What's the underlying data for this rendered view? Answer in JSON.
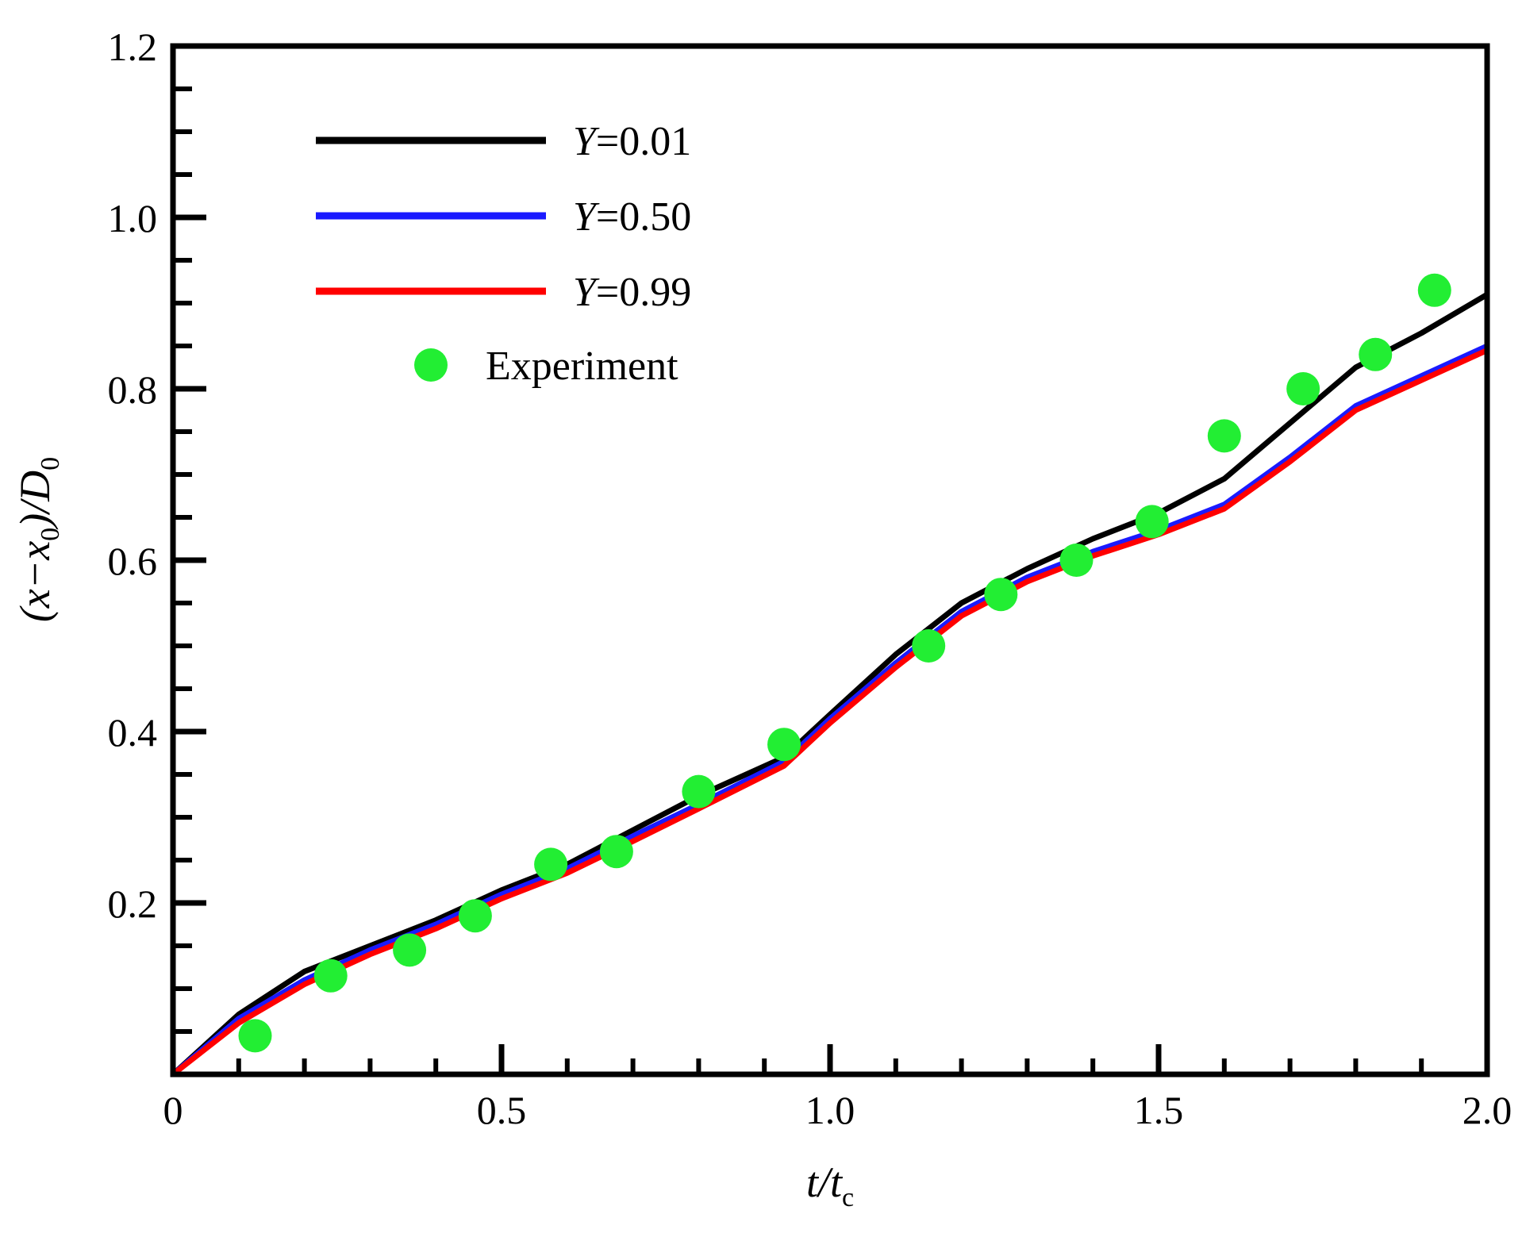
{
  "chart_data": {
    "type": "line",
    "xlabel": {
      "main": "t/t",
      "sub": "c"
    },
    "ylabel": {
      "pre": "(x−x",
      "sub1": "0",
      "mid": ")/D",
      "sub2": "0"
    },
    "xlim": [
      0,
      2.0
    ],
    "ylim": [
      0,
      1.2
    ],
    "x_ticks": [
      0,
      0.5,
      1.0,
      1.5,
      2.0
    ],
    "x_tick_labels": [
      "0",
      "0.5",
      "1.0",
      "1.5",
      "2.0"
    ],
    "y_ticks": [
      0.2,
      0.4,
      0.6,
      0.8,
      1.0,
      1.2
    ],
    "y_tick_labels": [
      "0.2",
      "0.4",
      "0.6",
      "0.8",
      "1.0",
      "1.2"
    ],
    "legend_placement": "top-left",
    "grid": false,
    "series": [
      {
        "name": "Y=0.01",
        "name_var": "Y",
        "name_val": "=0.01",
        "kind": "line",
        "color": "#000000",
        "x": [
          0.0,
          0.1,
          0.2,
          0.3,
          0.4,
          0.5,
          0.6,
          0.7,
          0.8,
          0.93,
          1.0,
          1.1,
          1.2,
          1.3,
          1.4,
          1.5,
          1.6,
          1.7,
          1.8,
          1.9,
          2.0
        ],
        "y": [
          0.0,
          0.07,
          0.12,
          0.15,
          0.18,
          0.215,
          0.245,
          0.285,
          0.325,
          0.37,
          0.42,
          0.49,
          0.55,
          0.59,
          0.625,
          0.655,
          0.695,
          0.76,
          0.825,
          0.865,
          0.91
        ]
      },
      {
        "name": "Y=0.50",
        "name_var": "Y",
        "name_val": "=0.50",
        "kind": "line",
        "color": "#1a1aff",
        "x": [
          0.0,
          0.1,
          0.2,
          0.3,
          0.4,
          0.5,
          0.6,
          0.7,
          0.8,
          0.93,
          1.0,
          1.1,
          1.2,
          1.3,
          1.4,
          1.5,
          1.6,
          1.7,
          1.8,
          1.9,
          2.0
        ],
        "y": [
          0.0,
          0.065,
          0.11,
          0.145,
          0.175,
          0.21,
          0.24,
          0.278,
          0.315,
          0.365,
          0.415,
          0.48,
          0.54,
          0.58,
          0.61,
          0.635,
          0.665,
          0.72,
          0.78,
          0.815,
          0.85
        ]
      },
      {
        "name": "Y=0.99",
        "name_var": "Y",
        "name_val": "=0.99",
        "kind": "line",
        "color": "#ff0000",
        "x": [
          0.0,
          0.1,
          0.2,
          0.3,
          0.4,
          0.5,
          0.6,
          0.7,
          0.8,
          0.93,
          1.0,
          1.1,
          1.2,
          1.3,
          1.4,
          1.5,
          1.6,
          1.7,
          1.8,
          1.9,
          2.0
        ],
        "y": [
          0.0,
          0.06,
          0.105,
          0.14,
          0.17,
          0.205,
          0.235,
          0.272,
          0.31,
          0.36,
          0.41,
          0.475,
          0.535,
          0.575,
          0.605,
          0.63,
          0.66,
          0.715,
          0.775,
          0.81,
          0.845
        ]
      },
      {
        "name": "Experiment",
        "kind": "scatter",
        "color": "#22ee33",
        "x": [
          0.125,
          0.24,
          0.36,
          0.46,
          0.575,
          0.675,
          0.8,
          0.93,
          1.15,
          1.26,
          1.375,
          1.49,
          1.6,
          1.72,
          1.83,
          1.92
        ],
        "y": [
          0.045,
          0.115,
          0.145,
          0.185,
          0.245,
          0.26,
          0.33,
          0.385,
          0.5,
          0.56,
          0.6,
          0.645,
          0.745,
          0.8,
          0.84,
          0.915
        ]
      }
    ]
  }
}
